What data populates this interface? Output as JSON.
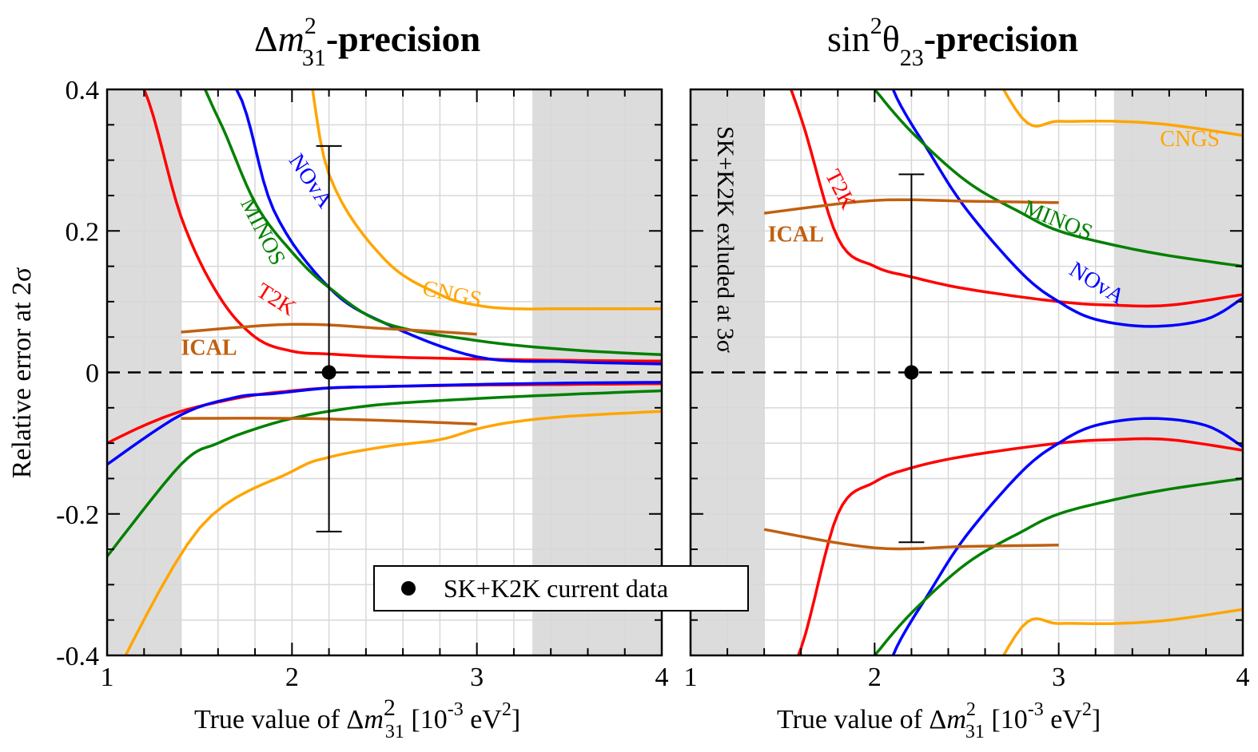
{
  "panels": [
    {
      "id": "left",
      "title": {
        "delta": "Δ",
        "m": "m",
        "sup": "2",
        "sub": "31",
        "rest": "-precision"
      },
      "xlabel": {
        "prefix": "True value of Δ",
        "m": "m",
        "sup": "2",
        "sub": "31",
        "unit_a": " [10",
        "unit_exp": "-3",
        "unit_b": " eV",
        "unit_sup": "2",
        "unit_c": "]"
      },
      "ylabel": "Relative error at 2σ"
    },
    {
      "id": "right",
      "title": {
        "sin": "sin",
        "sup": "2",
        "theta": "θ",
        "sub": "23",
        "rest": "-precision"
      },
      "xlabel": {
        "prefix": "True value of Δ",
        "m": "m",
        "sup": "2",
        "sub": "31",
        "unit_a": " [10",
        "unit_exp": "-3",
        "unit_b": " eV",
        "unit_sup": "2",
        "unit_c": "]"
      },
      "shade_label": "SK+K2K exluded at 3σ"
    }
  ],
  "legend": {
    "label": "SK+K2K current data"
  },
  "colors": {
    "T2K": "#ff0000",
    "NOvA": "#0000ff",
    "MINOS": "#008000",
    "CNGS": "#ffa500",
    "ICAL": "#c06010",
    "shade": "#dcdcdc",
    "grid": "#d8d8d8"
  },
  "chart_data": [
    {
      "type": "line",
      "title": "Δm²31-precision",
      "xlabel": "True value of Δm²31 [10⁻³ eV²]",
      "ylabel": "Relative error at 2σ",
      "xlim": [
        1,
        4
      ],
      "ylim": [
        -0.4,
        0.4
      ],
      "xticks": [
        "1",
        "2",
        "3",
        "4"
      ],
      "yticks": [
        "-0.4",
        "-0.2",
        "0",
        "0.2",
        "0.4"
      ],
      "grid": true,
      "shaded_x": [
        [
          1,
          1.4
        ],
        [
          3.3,
          4
        ]
      ],
      "reference": {
        "x": 2.2,
        "y": 0,
        "err_up": 0.32,
        "err_down": -0.225
      },
      "series": [
        {
          "name": "T2K",
          "curve_labels": [
            "T2K"
          ],
          "x": [
            1.0,
            1.2,
            1.4,
            1.6,
            1.8,
            2.0,
            2.2,
            2.5,
            3.0,
            3.5,
            4.0
          ],
          "upper": [
            0.45,
            0.4,
            0.22,
            0.11,
            0.05,
            0.03,
            0.026,
            0.022,
            0.019,
            0.017,
            0.016
          ],
          "lower": [
            -0.1,
            -0.075,
            -0.055,
            -0.042,
            -0.032,
            -0.026,
            -0.022,
            -0.02,
            -0.018,
            -0.017,
            -0.016
          ]
        },
        {
          "name": "NOvA",
          "curve_labels": [
            "NOvA"
          ],
          "x": [
            1.0,
            1.4,
            1.7,
            1.9,
            2.2,
            2.5,
            3.0,
            3.5,
            4.0
          ],
          "upper": [
            0.5,
            0.45,
            0.4,
            0.23,
            0.12,
            0.07,
            0.022,
            0.015,
            0.012
          ],
          "lower": [
            -0.13,
            -0.06,
            -0.035,
            -0.03,
            -0.022,
            -0.02,
            -0.017,
            -0.015,
            -0.014
          ]
        },
        {
          "name": "MINOS",
          "curve_labels": [
            "MINOS"
          ],
          "x": [
            1.0,
            1.4,
            1.6,
            1.8,
            2.0,
            2.2,
            2.5,
            3.0,
            3.5,
            4.0
          ],
          "upper": [
            0.5,
            0.45,
            0.36,
            0.24,
            0.17,
            0.12,
            0.07,
            0.045,
            0.032,
            0.025
          ],
          "lower": [
            -0.26,
            -0.13,
            -0.1,
            -0.08,
            -0.065,
            -0.055,
            -0.045,
            -0.037,
            -0.031,
            -0.026
          ]
        },
        {
          "name": "CNGS",
          "curve_labels": [
            "CNGS"
          ],
          "x": [
            1.0,
            1.5,
            2.0,
            2.2,
            2.5,
            2.8,
            3.0,
            3.2,
            3.5,
            4.0
          ],
          "upper": [
            0.5,
            0.5,
            0.5,
            0.28,
            0.16,
            0.11,
            0.095,
            0.09,
            0.09,
            0.09
          ],
          "lower": [
            -0.45,
            -0.22,
            -0.14,
            -0.12,
            -0.105,
            -0.095,
            -0.08,
            -0.07,
            -0.062,
            -0.055
          ]
        },
        {
          "name": "ICAL",
          "curve_labels": [
            "ICAL"
          ],
          "x": [
            1.4,
            2.0,
            2.5,
            3.0
          ],
          "upper": [
            0.057,
            0.068,
            0.062,
            0.054
          ],
          "lower": [
            -0.065,
            -0.065,
            -0.068,
            -0.073
          ]
        }
      ]
    },
    {
      "type": "line",
      "title": "sin²θ23-precision",
      "xlabel": "True value of Δm²31 [10⁻³ eV²]",
      "xlim": [
        1,
        4
      ],
      "ylim": [
        -0.4,
        0.4
      ],
      "xticks": [
        "1",
        "2",
        "3",
        "4"
      ],
      "grid": true,
      "shaded_x": [
        [
          1,
          1.4
        ],
        [
          3.3,
          4
        ]
      ],
      "reference": {
        "x": 2.2,
        "y": 0,
        "err_up": 0.28,
        "err_down": -0.24
      },
      "series": [
        {
          "name": "T2K",
          "curve_labels": [
            "T2K"
          ],
          "x": [
            1.4,
            1.6,
            1.8,
            2.0,
            2.2,
            2.5,
            3.0,
            3.3,
            3.6,
            4.0
          ],
          "upper": [
            0.5,
            0.36,
            0.19,
            0.15,
            0.135,
            0.118,
            0.1,
            0.095,
            0.095,
            0.11
          ],
          "lower": [
            -0.5,
            -0.39,
            -0.2,
            -0.155,
            -0.135,
            -0.118,
            -0.1,
            -0.095,
            -0.095,
            -0.11
          ]
        },
        {
          "name": "NOvA",
          "curve_labels": [
            "NOvA"
          ],
          "x": [
            2.0,
            2.1,
            2.3,
            2.5,
            2.8,
            3.0,
            3.2,
            3.5,
            3.8,
            4.0
          ],
          "upper": [
            0.5,
            0.4,
            0.31,
            0.23,
            0.14,
            0.1,
            0.075,
            0.065,
            0.075,
            0.105
          ],
          "lower": [
            -0.5,
            -0.4,
            -0.31,
            -0.23,
            -0.14,
            -0.1,
            -0.075,
            -0.065,
            -0.075,
            -0.105
          ]
        },
        {
          "name": "MINOS",
          "curve_labels": [
            "MINOS"
          ],
          "x": [
            2.0,
            2.2,
            2.5,
            2.8,
            3.0,
            3.3,
            3.6,
            4.0
          ],
          "upper": [
            0.4,
            0.34,
            0.27,
            0.225,
            0.2,
            0.18,
            0.165,
            0.15
          ],
          "lower": [
            -0.4,
            -0.34,
            -0.27,
            -0.225,
            -0.2,
            -0.18,
            -0.165,
            -0.15
          ]
        },
        {
          "name": "CNGS",
          "curve_labels": [
            "CNGS"
          ],
          "x": [
            2.5,
            2.8,
            3.0,
            3.3,
            3.6,
            4.0
          ],
          "upper": [
            0.5,
            0.36,
            0.355,
            0.355,
            0.35,
            0.335
          ],
          "lower": [
            -0.5,
            -0.36,
            -0.355,
            -0.355,
            -0.35,
            -0.335
          ]
        },
        {
          "name": "ICAL",
          "curve_labels": [
            "ICAL"
          ],
          "x": [
            1.4,
            2.0,
            2.5,
            3.0
          ],
          "upper": [
            0.225,
            0.243,
            0.242,
            0.24
          ],
          "lower": [
            -0.222,
            -0.248,
            -0.246,
            -0.244
          ]
        }
      ]
    }
  ]
}
